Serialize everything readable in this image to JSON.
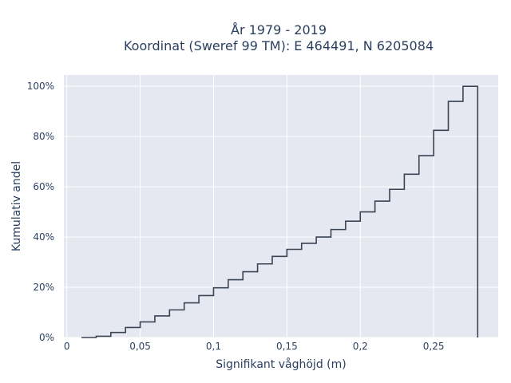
{
  "chart_data": {
    "type": "line",
    "line_shape": "step",
    "title_lines": [
      "År 1979 - 2019",
      "Koordinat (Sweref 99 TM): E 464491, N 6205084"
    ],
    "xlabel": "Signifikant våghöjd (m)",
    "ylabel": "Kumulativ andel",
    "xlim": [
      -0.002,
      0.294
    ],
    "ylim": [
      0,
      1.045
    ],
    "x_ticks": [
      0,
      0.05,
      0.1,
      0.15,
      0.2,
      0.25
    ],
    "x_tick_labels": [
      "0",
      "0,05",
      "0,1",
      "0,15",
      "0,2",
      "0,25"
    ],
    "y_ticks": [
      0,
      0.2,
      0.4,
      0.6,
      0.8,
      1.0
    ],
    "y_tick_labels": [
      "0%",
      "20%",
      "40%",
      "60%",
      "80%",
      "100%"
    ],
    "grid": true,
    "colors": {
      "line": "#3b4455",
      "plot_bg": "#e5e8f0",
      "grid": "#ffffff"
    },
    "series": [
      {
        "x": [
          0.01,
          0.02,
          0.03,
          0.04,
          0.05,
          0.06,
          0.07,
          0.08,
          0.09,
          0.1,
          0.11,
          0.12,
          0.13,
          0.14,
          0.15,
          0.16,
          0.17,
          0.18,
          0.19,
          0.2,
          0.21,
          0.22,
          0.23,
          0.24,
          0.25,
          0.26,
          0.27,
          0.28,
          0.28
        ],
        "y": [
          0.0,
          0.005,
          0.02,
          0.04,
          0.062,
          0.086,
          0.11,
          0.138,
          0.167,
          0.198,
          0.23,
          0.262,
          0.293,
          0.323,
          0.351,
          0.375,
          0.4,
          0.43,
          0.463,
          0.5,
          0.543,
          0.59,
          0.65,
          0.724,
          0.825,
          0.94,
          1.0,
          1.0,
          0.0
        ]
      }
    ]
  }
}
